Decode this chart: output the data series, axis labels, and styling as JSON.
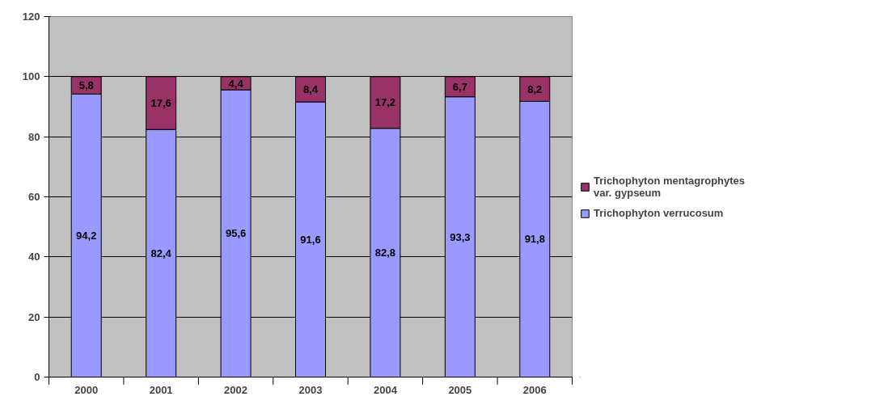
{
  "chart_data": {
    "type": "bar",
    "stacked": true,
    "categories": [
      "2000",
      "2001",
      "2002",
      "2003",
      "2004",
      "2005",
      "2006"
    ],
    "series": [
      {
        "name": "Trichophyton verrucosum",
        "color": "#9999ff",
        "values": [
          94.2,
          82.4,
          95.6,
          91.6,
          82.8,
          93.3,
          91.8
        ],
        "value_labels": [
          "94,2",
          "82,4",
          "95,6",
          "91,6",
          "82,8",
          "93,3",
          "91,8"
        ]
      },
      {
        "name": "Trichophyton mentagrophytes var. gypseum",
        "color": "#993366",
        "values": [
          5.8,
          17.6,
          4.4,
          8.4,
          17.2,
          6.7,
          8.2
        ],
        "value_labels": [
          "5,8",
          "17,6",
          "4,4",
          "8,4",
          "17,2",
          "6,7",
          "8,2"
        ]
      }
    ],
    "ylim": [
      0,
      120
    ],
    "yticks": [
      0,
      20,
      40,
      60,
      80,
      100,
      120
    ],
    "grid": "y",
    "legend": "right"
  }
}
